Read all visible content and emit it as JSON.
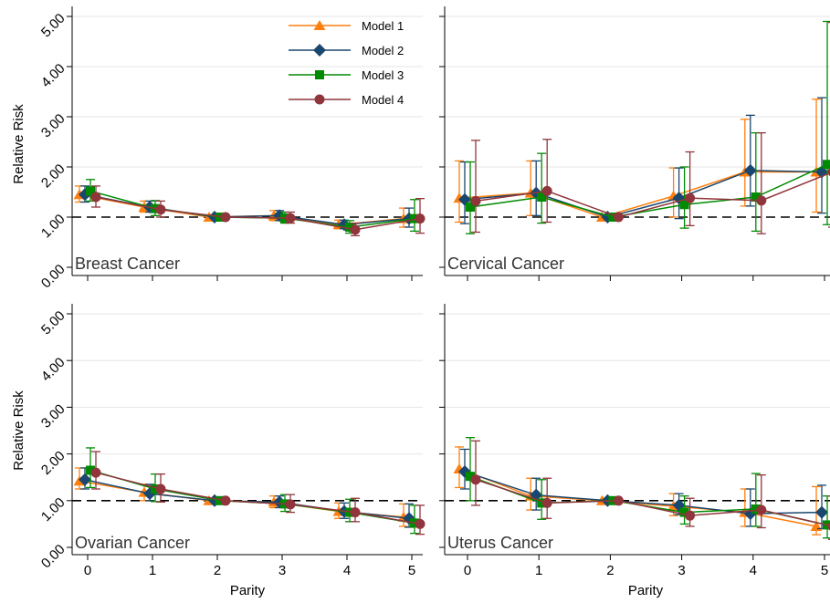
{
  "chart_data": {
    "type": "line",
    "x_label": "Parity",
    "y_label": "Relative Risk",
    "x_ticks": [
      "0",
      "1",
      "2",
      "3",
      "4",
      "5"
    ],
    "y_ticks": [
      "0.00",
      "1.00",
      "2.00",
      "3.00",
      "4.00",
      "5.00"
    ],
    "ylim": [
      0,
      5
    ],
    "reference_line_y": 1.0,
    "error_bars": true,
    "grid": "horizontal",
    "legend_position": "top-right of first panel",
    "series_styles": [
      {
        "name": "Model 1",
        "color": "#ff7f0e",
        "marker": "triangle"
      },
      {
        "name": "Model 2",
        "color": "#1a476f",
        "marker": "diamond"
      },
      {
        "name": "Model 3",
        "color": "#008a00",
        "marker": "square"
      },
      {
        "name": "Model 4",
        "color": "#90353b",
        "marker": "circle"
      }
    ],
    "panels": [
      {
        "title": "Breast Cancer",
        "series": [
          {
            "name": "Model 1",
            "x": [
              0,
              1,
              2,
              3,
              4,
              5
            ],
            "values": [
              1.45,
              1.2,
              1.0,
              1.03,
              0.85,
              0.97
            ],
            "lower": [
              1.3,
              1.1,
              1.0,
              0.93,
              0.77,
              0.8
            ],
            "upper": [
              1.62,
              1.32,
              1.0,
              1.13,
              0.94,
              1.18
            ]
          },
          {
            "name": "Model 2",
            "x": [
              0,
              1,
              2,
              3,
              4,
              5
            ],
            "values": [
              1.45,
              1.2,
              1.0,
              1.03,
              0.85,
              0.97
            ],
            "lower": [
              1.3,
              1.1,
              1.0,
              0.93,
              0.77,
              0.8
            ],
            "upper": [
              1.62,
              1.32,
              1.0,
              1.13,
              0.94,
              1.18
            ]
          },
          {
            "name": "Model 3",
            "x": [
              0,
              1,
              2,
              3,
              4,
              5
            ],
            "values": [
              1.52,
              1.17,
              1.0,
              0.98,
              0.8,
              0.97
            ],
            "lower": [
              1.32,
              1.03,
              1.0,
              0.88,
              0.68,
              0.72
            ],
            "upper": [
              1.75,
              1.33,
              1.0,
              1.1,
              0.93,
              1.35
            ]
          },
          {
            "name": "Model 4",
            "x": [
              0,
              1,
              2,
              3,
              4,
              5
            ],
            "values": [
              1.4,
              1.15,
              1.0,
              0.98,
              0.75,
              0.97
            ],
            "lower": [
              1.2,
              1.0,
              1.0,
              0.88,
              0.63,
              0.68
            ],
            "upper": [
              1.62,
              1.32,
              1.0,
              1.1,
              0.88,
              1.37
            ]
          }
        ]
      },
      {
        "title": "Cervical Cancer",
        "series": [
          {
            "name": "Model 1",
            "x": [
              0,
              1,
              2,
              3,
              4,
              5
            ],
            "values": [
              1.38,
              1.48,
              1.0,
              1.42,
              1.9,
              1.9
            ],
            "lower": [
              0.9,
              1.03,
              1.0,
              1.0,
              1.22,
              1.1
            ],
            "upper": [
              2.12,
              2.12,
              1.0,
              1.98,
              2.95,
              3.35
            ]
          },
          {
            "name": "Model 2",
            "x": [
              0,
              1,
              2,
              3,
              4,
              5
            ],
            "values": [
              1.35,
              1.48,
              1.0,
              1.38,
              1.93,
              1.9
            ],
            "lower": [
              0.87,
              1.03,
              1.0,
              0.97,
              1.22,
              1.08
            ],
            "upper": [
              2.1,
              2.12,
              1.0,
              1.98,
              3.03,
              3.38
            ]
          },
          {
            "name": "Model 3",
            "x": [
              0,
              1,
              2,
              3,
              4,
              5
            ],
            "values": [
              1.2,
              1.4,
              1.0,
              1.25,
              1.4,
              2.05
            ],
            "lower": [
              0.67,
              0.88,
              1.0,
              0.78,
              0.72,
              0.85
            ],
            "upper": [
              2.1,
              2.27,
              1.0,
              2.0,
              2.68,
              4.9
            ]
          },
          {
            "name": "Model 4",
            "x": [
              0,
              1,
              2,
              3,
              4,
              5
            ],
            "values": [
              1.32,
              1.52,
              1.0,
              1.38,
              1.33,
              1.9
            ],
            "lower": [
              0.7,
              0.9,
              1.0,
              0.83,
              0.67,
              0.8
            ],
            "upper": [
              2.53,
              2.55,
              1.0,
              2.3,
              2.68,
              4.88
            ]
          }
        ]
      },
      {
        "title": "Ovarian Cancer",
        "series": [
          {
            "name": "Model 1",
            "x": [
              0,
              1,
              2,
              3,
              4,
              5
            ],
            "values": [
              1.42,
              1.18,
              1.0,
              0.97,
              0.77,
              0.65
            ],
            "lower": [
              1.25,
              1.0,
              1.0,
              0.85,
              0.62,
              0.45
            ],
            "upper": [
              1.7,
              1.35,
              1.0,
              1.1,
              0.95,
              0.93
            ]
          },
          {
            "name": "Model 2",
            "x": [
              0,
              1,
              2,
              3,
              4,
              5
            ],
            "values": [
              1.45,
              1.15,
              1.0,
              0.97,
              0.77,
              0.62
            ],
            "lower": [
              1.25,
              1.0,
              1.0,
              0.85,
              0.62,
              0.43
            ],
            "upper": [
              1.7,
              1.35,
              1.0,
              1.1,
              0.95,
              0.93
            ]
          },
          {
            "name": "Model 3",
            "x": [
              0,
              1,
              2,
              3,
              4,
              5
            ],
            "values": [
              1.65,
              1.25,
              1.0,
              0.93,
              0.75,
              0.52
            ],
            "lower": [
              1.28,
              0.98,
              1.0,
              0.77,
              0.55,
              0.3
            ],
            "upper": [
              2.13,
              1.57,
              1.0,
              1.13,
              1.03,
              0.9
            ]
          },
          {
            "name": "Model 4",
            "x": [
              0,
              1,
              2,
              3,
              4,
              5
            ],
            "values": [
              1.6,
              1.25,
              1.0,
              0.92,
              0.75,
              0.5
            ],
            "lower": [
              1.25,
              0.97,
              1.0,
              0.75,
              0.55,
              0.28
            ],
            "upper": [
              2.05,
              1.57,
              1.0,
              1.13,
              1.05,
              0.9
            ]
          }
        ]
      },
      {
        "title": "Uterus Cancer",
        "series": [
          {
            "name": "Model 1",
            "x": [
              0,
              1,
              2,
              3,
              4,
              5
            ],
            "values": [
              1.68,
              1.1,
              1.0,
              0.88,
              0.75,
              0.45
            ],
            "lower": [
              1.28,
              0.8,
              1.0,
              0.68,
              0.45,
              0.27
            ],
            "upper": [
              2.15,
              1.48,
              1.0,
              1.15,
              1.25,
              1.3
            ]
          },
          {
            "name": "Model 2",
            "x": [
              0,
              1,
              2,
              3,
              4,
              5
            ],
            "values": [
              1.62,
              1.12,
              1.0,
              0.9,
              0.72,
              0.75
            ],
            "lower": [
              1.25,
              0.8,
              1.0,
              0.7,
              0.45,
              0.4
            ],
            "upper": [
              2.1,
              1.48,
              1.0,
              1.15,
              1.25,
              1.33
            ]
          },
          {
            "name": "Model 3",
            "x": [
              0,
              1,
              2,
              3,
              4,
              5
            ],
            "values": [
              1.52,
              0.95,
              1.0,
              0.75,
              0.82,
              0.48
            ],
            "lower": [
              1.0,
              0.6,
              1.0,
              0.5,
              0.45,
              0.2
            ],
            "upper": [
              2.35,
              1.45,
              1.0,
              1.1,
              1.58,
              1.1
            ]
          },
          {
            "name": "Model 4",
            "x": [
              0,
              1,
              2,
              3,
              4,
              5
            ],
            "values": [
              1.45,
              0.95,
              1.0,
              0.68,
              0.8,
              0.45
            ],
            "lower": [
              0.9,
              0.62,
              1.0,
              0.45,
              0.42,
              0.17
            ],
            "upper": [
              2.28,
              1.48,
              1.0,
              1.05,
              1.55,
              1.1
            ]
          }
        ]
      }
    ]
  }
}
